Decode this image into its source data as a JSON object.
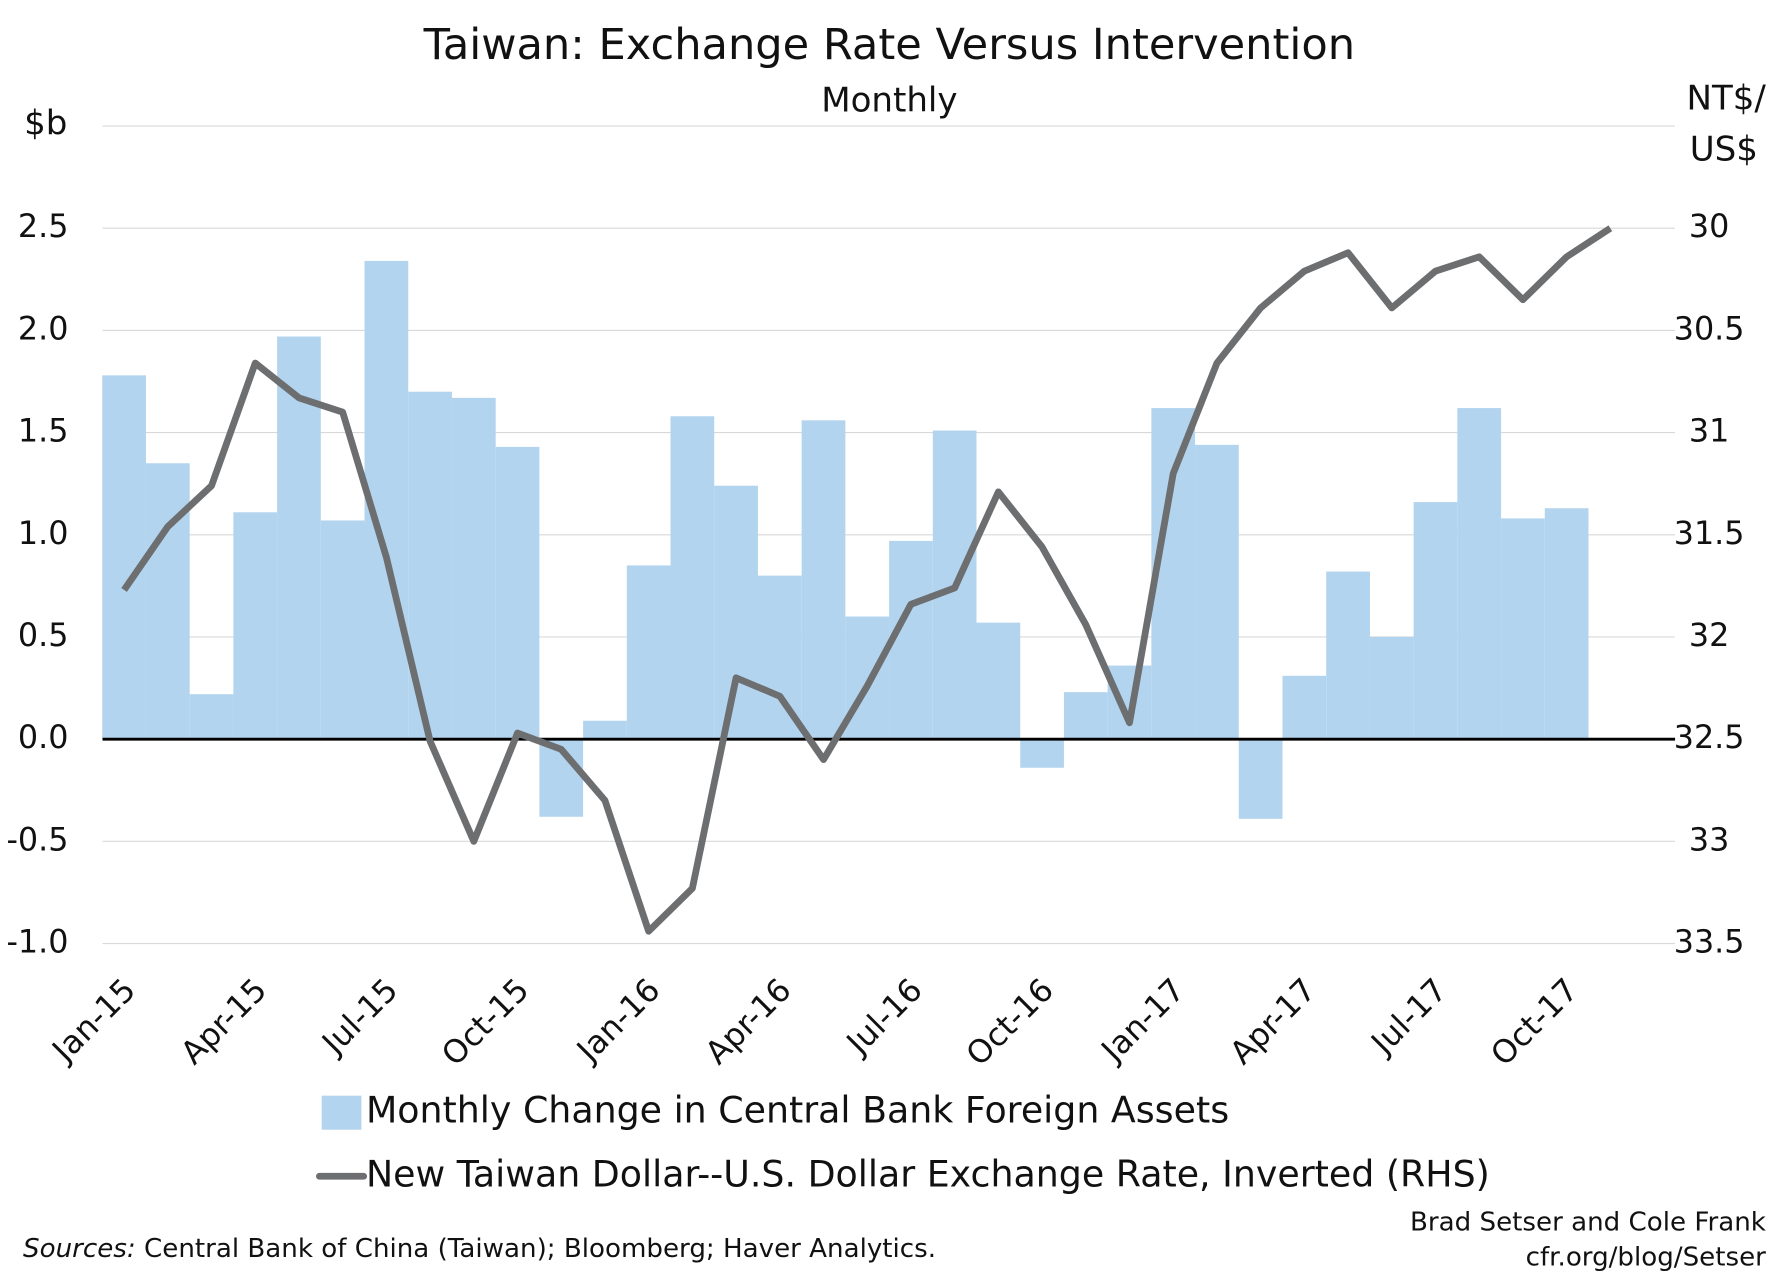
{
  "chart_data": {
    "type": "bar-line",
    "title": "Taiwan: Exchange Rate Versus Intervention",
    "subtitle": "Monthly",
    "y_label": "$b",
    "y2_label": [
      "NT$/",
      "US$"
    ],
    "categories": [
      "Jan-15",
      null,
      null,
      "Apr-15",
      null,
      null,
      "Jul-15",
      null,
      null,
      "Oct-15",
      null,
      null,
      "Jan-16",
      null,
      null,
      "Apr-16",
      null,
      null,
      "Jul-16",
      null,
      null,
      "Oct-16",
      null,
      null,
      "Jan-17",
      null,
      null,
      "Apr-17",
      null,
      null,
      "Jul-17",
      null,
      null,
      "Oct-17",
      null
    ],
    "series": [
      {
        "name": "Monthly Change in Central Bank Foreign Assets",
        "type": "bar",
        "color": "#b3d4ee",
        "values": [
          1.78,
          1.35,
          0.22,
          1.11,
          1.97,
          1.07,
          2.34,
          1.7,
          1.67,
          1.43,
          -0.38,
          0.09,
          0.85,
          1.58,
          1.24,
          0.8,
          1.56,
          0.6,
          0.97,
          1.51,
          0.57,
          -0.14,
          0.23,
          0.36,
          1.62,
          1.44,
          -0.39,
          0.31,
          0.82,
          0.5,
          1.16,
          1.62,
          1.08,
          1.13,
          null
        ]
      },
      {
        "name": "New Taiwan Dollar--U.S. Dollar Exchange Rate, Inverted (RHS)",
        "type": "line",
        "axis": "y2",
        "color": "#6d6e70",
        "values": [
          31.77,
          31.46,
          31.26,
          30.66,
          30.83,
          30.9,
          31.61,
          32.51,
          33.0,
          32.47,
          32.55,
          32.8,
          33.44,
          33.23,
          32.2,
          32.29,
          32.6,
          32.24,
          31.84,
          31.76,
          31.29,
          31.56,
          31.94,
          32.42,
          31.2,
          30.66,
          30.39,
          30.21,
          30.12,
          30.39,
          30.21,
          30.14,
          30.35,
          30.14,
          30.0
        ]
      }
    ],
    "ylim": [
      -1,
      3
    ],
    "yticks": [
      {
        "value": -1,
        "label": "-1.0"
      },
      -0.5,
      {
        "value": 0,
        "label": "0.0"
      },
      0.5,
      {
        "value": 1,
        "label": "1.0"
      },
      1.5,
      {
        "value": 2,
        "label": "2.0"
      },
      2.5
    ],
    "y2lim": [
      33.5,
      29.5
    ],
    "y2ticks": [
      33.5,
      33,
      32.5,
      32,
      31.5,
      31,
      30.5,
      30
    ],
    "grid": true,
    "sources_label": "Sources:",
    "sources": "Central Bank of China (Taiwan); Bloomberg; Haver Analytics.",
    "credit": [
      "Brad Setser and Cole Frank",
      "cfr.org/blog/Setser"
    ]
  }
}
